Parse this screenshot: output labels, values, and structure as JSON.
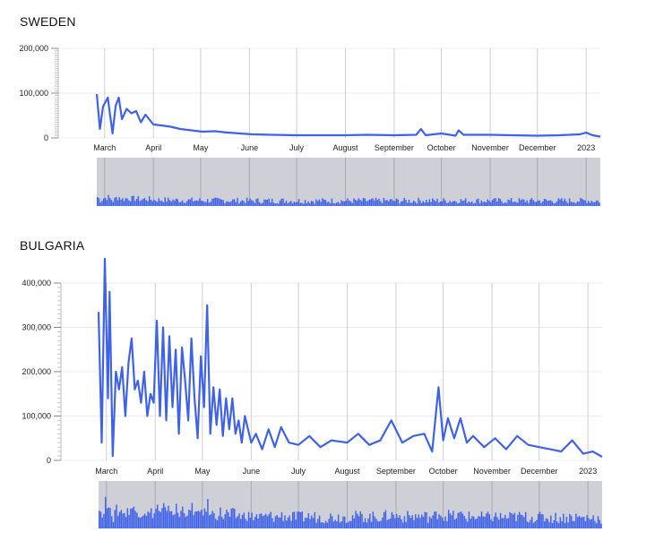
{
  "chart_data": [
    {
      "type": "line",
      "title": "SWEDEN",
      "xlabel": "",
      "ylabel": "",
      "ylim": [
        0,
        200000
      ],
      "y_ticks": [
        0,
        100000,
        200000
      ],
      "y_tick_labels": [
        "0",
        "100,000",
        "200,000"
      ],
      "x_tick_labels": [
        "March",
        "April",
        "May",
        "June",
        "July",
        "August",
        "September",
        "October",
        "November",
        "December",
        "2023"
      ],
      "x_tick_dates": [
        "2022-03-01",
        "2022-04-01",
        "2022-05-01",
        "2022-06-01",
        "2022-07-01",
        "2022-08-01",
        "2022-09-01",
        "2022-10-01",
        "2022-11-01",
        "2022-12-01",
        "2023-01-01"
      ],
      "x_range": [
        "2022-02-24",
        "2023-01-10"
      ],
      "grid": "vertical",
      "has_brush_overview": true,
      "series": [
        {
          "x": [
            "2022-02-24",
            "2022-02-26",
            "2022-02-28",
            "2022-03-03",
            "2022-03-06",
            "2022-03-08",
            "2022-03-10",
            "2022-03-12",
            "2022-03-15",
            "2022-03-18",
            "2022-03-21",
            "2022-03-24",
            "2022-03-27",
            "2022-04-01",
            "2022-04-06",
            "2022-04-12",
            "2022-04-18",
            "2022-04-25",
            "2022-05-02",
            "2022-05-10",
            "2022-05-18",
            "2022-05-26",
            "2022-06-03",
            "2022-06-15",
            "2022-07-01",
            "2022-07-15",
            "2022-08-01",
            "2022-08-15",
            "2022-09-01",
            "2022-09-15",
            "2022-09-18",
            "2022-09-21",
            "2022-10-01",
            "2022-10-10",
            "2022-10-12",
            "2022-10-15",
            "2022-11-01",
            "2022-11-15",
            "2022-12-01",
            "2022-12-15",
            "2022-12-28",
            "2023-01-01",
            "2023-01-05",
            "2023-01-10"
          ],
          "values": [
            98000,
            20000,
            70000,
            90000,
            10000,
            72000,
            90000,
            42000,
            65000,
            55000,
            60000,
            35000,
            52000,
            30000,
            28000,
            25000,
            20000,
            17000,
            14000,
            15000,
            12000,
            10000,
            8000,
            7000,
            6000,
            6000,
            6000,
            7000,
            6000,
            7000,
            20000,
            6000,
            10000,
            5000,
            17000,
            7000,
            7000,
            6000,
            5000,
            6000,
            8000,
            12000,
            6000,
            3000
          ]
        }
      ]
    },
    {
      "type": "line",
      "title": "BULGARIA",
      "xlabel": "",
      "ylabel": "",
      "ylim": [
        0,
        400000
      ],
      "y_ticks": [
        0,
        100000,
        200000,
        300000,
        400000
      ],
      "y_tick_labels": [
        "0",
        "100,000",
        "200,000",
        "300,000",
        "400,000"
      ],
      "x_tick_labels": [
        "March",
        "April",
        "May",
        "June",
        "July",
        "August",
        "September",
        "October",
        "November",
        "December",
        "2023"
      ],
      "x_tick_dates": [
        "2022-03-01",
        "2022-04-01",
        "2022-05-01",
        "2022-06-01",
        "2022-07-01",
        "2022-08-01",
        "2022-09-01",
        "2022-10-01",
        "2022-11-01",
        "2022-12-01",
        "2023-01-01"
      ],
      "x_range": [
        "2022-02-24",
        "2023-01-10"
      ],
      "grid": "vertical",
      "has_brush_overview": true,
      "series": [
        {
          "x": [
            "2022-02-24",
            "2022-02-26",
            "2022-02-28",
            "2022-03-02",
            "2022-03-03",
            "2022-03-05",
            "2022-03-07",
            "2022-03-09",
            "2022-03-11",
            "2022-03-13",
            "2022-03-15",
            "2022-03-17",
            "2022-03-19",
            "2022-03-21",
            "2022-03-23",
            "2022-03-25",
            "2022-03-27",
            "2022-03-29",
            "2022-03-31",
            "2022-04-02",
            "2022-04-04",
            "2022-04-06",
            "2022-04-08",
            "2022-04-10",
            "2022-04-12",
            "2022-04-14",
            "2022-04-16",
            "2022-04-18",
            "2022-04-20",
            "2022-04-22",
            "2022-04-24",
            "2022-04-26",
            "2022-04-28",
            "2022-04-30",
            "2022-05-02",
            "2022-05-04",
            "2022-05-06",
            "2022-05-08",
            "2022-05-10",
            "2022-05-12",
            "2022-05-14",
            "2022-05-16",
            "2022-05-18",
            "2022-05-20",
            "2022-05-22",
            "2022-05-24",
            "2022-05-26",
            "2022-05-28",
            "2022-05-30",
            "2022-06-01",
            "2022-06-04",
            "2022-06-08",
            "2022-06-12",
            "2022-06-16",
            "2022-06-20",
            "2022-06-25",
            "2022-07-01",
            "2022-07-08",
            "2022-07-15",
            "2022-07-22",
            "2022-08-01",
            "2022-08-08",
            "2022-08-15",
            "2022-08-22",
            "2022-08-29",
            "2022-09-05",
            "2022-09-12",
            "2022-09-19",
            "2022-09-24",
            "2022-09-28",
            "2022-10-01",
            "2022-10-04",
            "2022-10-08",
            "2022-10-12",
            "2022-10-16",
            "2022-10-20",
            "2022-10-27",
            "2022-11-03",
            "2022-11-10",
            "2022-11-17",
            "2022-11-24",
            "2022-12-01",
            "2022-12-08",
            "2022-12-15",
            "2022-12-22",
            "2022-12-29",
            "2023-01-04",
            "2023-01-10"
          ],
          "values": [
            335000,
            40000,
            455000,
            140000,
            380000,
            10000,
            200000,
            160000,
            210000,
            100000,
            220000,
            275000,
            160000,
            180000,
            130000,
            200000,
            100000,
            150000,
            130000,
            315000,
            100000,
            300000,
            90000,
            280000,
            120000,
            250000,
            60000,
            255000,
            180000,
            90000,
            275000,
            140000,
            50000,
            235000,
            120000,
            350000,
            60000,
            165000,
            80000,
            160000,
            55000,
            140000,
            70000,
            140000,
            60000,
            90000,
            40000,
            100000,
            70000,
            40000,
            60000,
            25000,
            70000,
            30000,
            75000,
            40000,
            35000,
            55000,
            30000,
            45000,
            40000,
            60000,
            35000,
            45000,
            90000,
            40000,
            55000,
            60000,
            20000,
            165000,
            45000,
            95000,
            50000,
            95000,
            40000,
            55000,
            30000,
            50000,
            25000,
            55000,
            35000,
            30000,
            25000,
            20000,
            45000,
            15000,
            20000,
            8000
          ]
        }
      ]
    }
  ]
}
